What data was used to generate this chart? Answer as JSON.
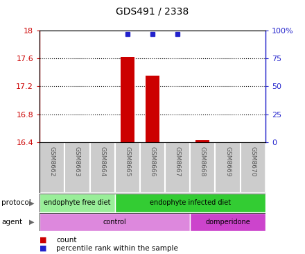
{
  "title": "GDS491 / 2338",
  "samples": [
    "GSM8662",
    "GSM8663",
    "GSM8664",
    "GSM8665",
    "GSM8666",
    "GSM8667",
    "GSM8668",
    "GSM8669",
    "GSM8670"
  ],
  "bar_values": [
    null,
    null,
    null,
    17.62,
    17.35,
    null,
    null,
    null,
    null
  ],
  "bar_bottom": 16.4,
  "small_bar_value": 16.43,
  "small_bar_sample_idx": 6,
  "dot_values": [
    null,
    null,
    null,
    97,
    97,
    97,
    null,
    null,
    null
  ],
  "ylim_left": [
    16.4,
    18.0
  ],
  "ylim_right": [
    0,
    100
  ],
  "yticks_left": [
    16.4,
    16.8,
    17.2,
    17.6,
    18.0
  ],
  "yticks_right": [
    0,
    25,
    50,
    75,
    100
  ],
  "bar_color": "#cc0000",
  "dot_color": "#2222cc",
  "protocol_groups": [
    {
      "label": "endophyte free diet",
      "start": 0,
      "end": 3,
      "color": "#99ee99"
    },
    {
      "label": "endophyte infected diet",
      "start": 3,
      "end": 9,
      "color": "#33cc33"
    }
  ],
  "agent_groups": [
    {
      "label": "control",
      "start": 0,
      "end": 6,
      "color": "#dd88dd"
    },
    {
      "label": "domperidone",
      "start": 6,
      "end": 9,
      "color": "#cc44cc"
    }
  ],
  "protocol_label": "protocol",
  "agent_label": "agent",
  "legend_bar_label": "count",
  "legend_dot_label": "percentile rank within the sample",
  "left_axis_color": "#cc0000",
  "right_axis_color": "#2222cc",
  "sample_box_color": "#cccccc",
  "sample_text_color": "#555555"
}
